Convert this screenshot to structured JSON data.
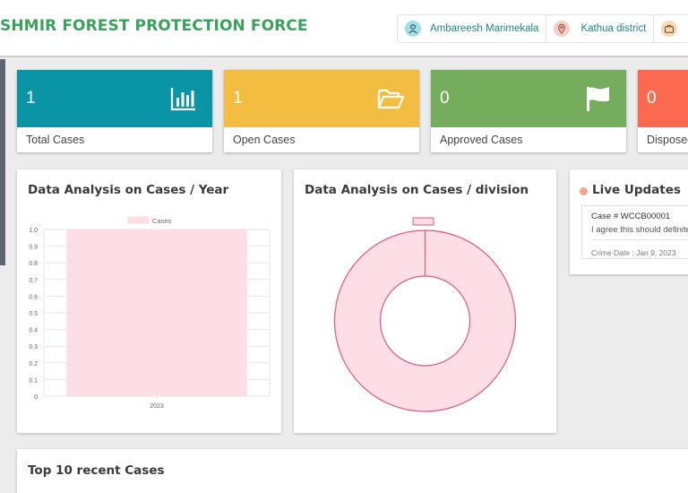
{
  "header": {
    "title": "SHMIR FOREST PROTECTION FORCE",
    "user_name": "Ambareesh Marimekala",
    "district": "Kathua district"
  },
  "stats": [
    {
      "value": "1",
      "label": "Total Cases",
      "color": "#0a95a6",
      "icon": "bar-chart-icon"
    },
    {
      "value": "1",
      "label": "Open Cases",
      "color": "#f3bd41",
      "icon": "folder-open-icon"
    },
    {
      "value": "0",
      "label": "Approved Cases",
      "color": "#74ad5c",
      "icon": "flag-icon"
    },
    {
      "value": "0",
      "label": "Disposed",
      "color": "#fb6a50",
      "icon": ""
    }
  ],
  "year_card": {
    "title": "Data Analysis on Cases / Year"
  },
  "division_card": {
    "title": "Data Analysis on Cases / division"
  },
  "live_updates": {
    "title": "Live Updates",
    "case_no": "Case # WCCB00001",
    "message": "I agree this should definite",
    "crime_date": "Crime Date : Jan 9, 2023"
  },
  "recent_cases": {
    "title": "Top 10 recent Cases"
  },
  "chart_data": [
    {
      "type": "bar",
      "title": "",
      "legend": [
        "Cases"
      ],
      "legend_position": "top",
      "categories": [
        "2023"
      ],
      "series": [
        {
          "name": "Cases",
          "values": [
            1
          ]
        }
      ],
      "ylim": [
        0,
        1.0
      ],
      "yticks": [
        "1.0",
        "0.9",
        "0.8",
        "0.7",
        "0.6",
        "0.5",
        "0.4",
        "0.3",
        "0.2",
        "0.1",
        "0"
      ],
      "grid": true,
      "fill_color": "#fddde6",
      "border_color": "#ff6384"
    },
    {
      "type": "pie",
      "title": "",
      "legend": [
        ""
      ],
      "legend_position": "top",
      "slices": [
        {
          "label": "",
          "value": 1
        }
      ],
      "fill_color": "#fddde6",
      "border_color": "#dc5a7b"
    }
  ]
}
